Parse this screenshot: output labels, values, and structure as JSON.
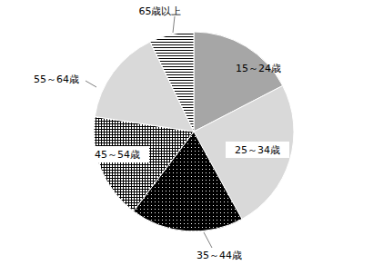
{
  "chart_data": {
    "type": "pie",
    "categories": [
      "15～24歳",
      "25～34歳",
      "35～44歳",
      "45～54歳",
      "55～64歳",
      "65歳以上"
    ],
    "values": [
      17.4,
      24.6,
      18.3,
      17.1,
      15.4,
      7.2
    ],
    "colors": [
      "#a6a6a6",
      "#d9d9d9",
      "#000000",
      "#ffffff",
      "#d9d9d9",
      "#ffffff"
    ]
  }
}
